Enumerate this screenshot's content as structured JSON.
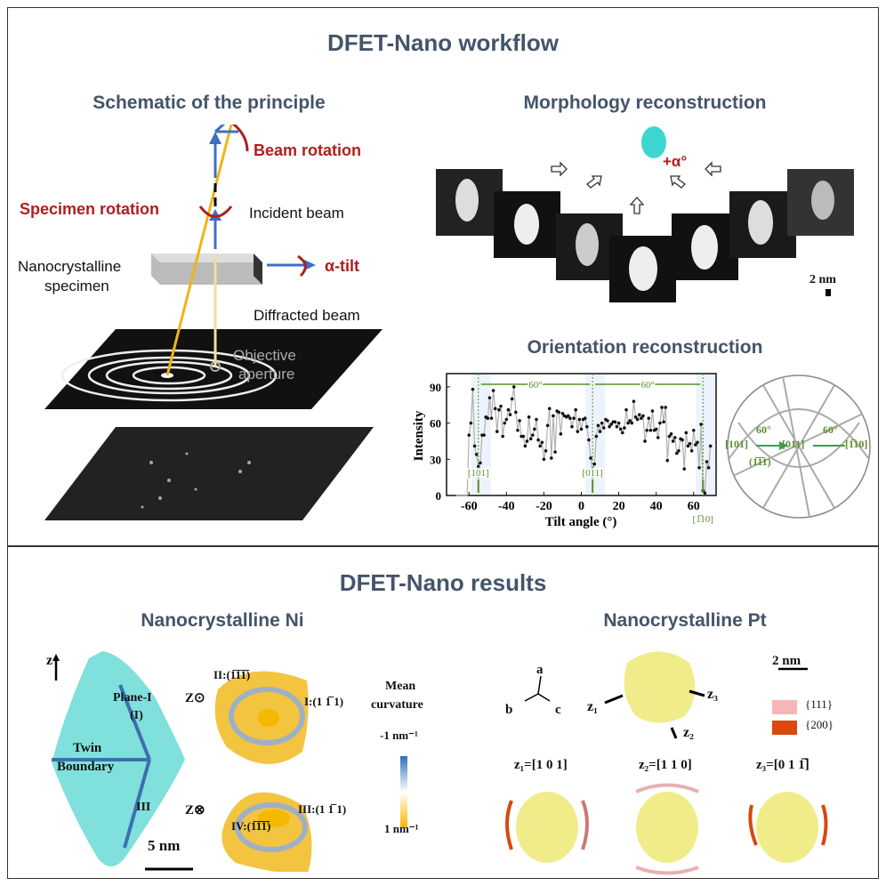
{
  "workflow": {
    "title": "DFET-Nano workflow",
    "schematic": {
      "title": "Schematic of the principle",
      "beam_rotation": "Beam rotation",
      "specimen_rotation": "Specimen rotation",
      "incident_beam": "Incident beam",
      "specimen_line1": "Nanocrystalline",
      "specimen_line2": "specimen",
      "alpha_tilt": "α-tilt",
      "diffracted_beam": "Diffracted beam",
      "aperture_line1": "Objective",
      "aperture_line2": "aperture"
    },
    "morphology": {
      "title": "Morphology reconstruction",
      "tilt_label": "+α°",
      "scale_bar": "2 nm"
    },
    "orientation": {
      "title": "Orientation reconstruction",
      "stereo_labels": {
        "left": "[101]",
        "center": "[011]",
        "right": "[1̅10]",
        "mid": "(1̅1̅1)",
        "angle_left": "60°",
        "angle_right": "60°"
      }
    }
  },
  "chart_data": {
    "type": "line",
    "xlabel": "Tilt angle (°)",
    "ylabel": "Intensity",
    "xlim": [
      -72,
      72
    ],
    "ylim": [
      0,
      101
    ],
    "xticks": [
      -60,
      -40,
      -20,
      0,
      20,
      40,
      60
    ],
    "yticks": [
      0,
      30,
      60,
      90
    ],
    "grid": false,
    "line_color": "#b0b0b0",
    "marker_color": "#111111",
    "annotations": [
      {
        "x": -55,
        "label": "[101]"
      },
      {
        "x": 6,
        "label": "[011]"
      },
      {
        "x": 65,
        "label": "[1̅10]"
      }
    ],
    "spans": [
      {
        "from": -55,
        "to": 6,
        "label": "60°"
      },
      {
        "from": 6,
        "to": 65,
        "label": "60°"
      }
    ],
    "x": [
      -67,
      -66,
      -65,
      -64,
      -63,
      -62,
      -61,
      -60,
      -59,
      -58,
      -57,
      -56,
      -55,
      -54,
      -53,
      -52,
      -51,
      -50,
      -49,
      -48,
      -47,
      -46,
      -45,
      -44,
      -43,
      -42,
      -41,
      -40,
      -39,
      -38,
      -37,
      -36,
      -35,
      -34,
      -33,
      -32,
      -31,
      -30,
      -29,
      -28,
      -27,
      -26,
      -25,
      -24,
      -23,
      -22,
      -21,
      -20,
      -19,
      -18,
      -17,
      -16,
      -15,
      -14,
      -13,
      -12,
      -11,
      -10,
      -9,
      -8,
      -7,
      -6,
      -5,
      -4,
      -3,
      -2,
      -1,
      0,
      1,
      2,
      3,
      4,
      5,
      6,
      7,
      8,
      9,
      10,
      11,
      12,
      13,
      14,
      15,
      16,
      17,
      18,
      19,
      20,
      21,
      22,
      23,
      24,
      25,
      26,
      27,
      28,
      29,
      30,
      31,
      32,
      33,
      34,
      35,
      36,
      37,
      38,
      39,
      40,
      41,
      42,
      43,
      44,
      45,
      46,
      47,
      48,
      49,
      50,
      51,
      52,
      53,
      54,
      55,
      56,
      57,
      58,
      59,
      60,
      61,
      62,
      63,
      64,
      65,
      66,
      67,
      68,
      69
    ],
    "y": [
      0,
      0,
      0,
      0,
      0,
      0,
      0,
      50,
      60,
      88,
      41,
      34,
      24,
      27,
      50,
      50,
      65,
      64,
      81,
      64,
      87,
      72,
      53,
      71,
      74,
      49,
      60,
      63,
      71,
      67,
      80,
      90,
      69,
      54,
      62,
      49,
      49,
      41,
      45,
      65,
      47,
      50,
      55,
      63,
      46,
      41,
      44,
      30,
      37,
      58,
      72,
      31,
      66,
      36,
      70,
      69,
      51,
      68,
      66,
      65,
      66,
      64,
      57,
      64,
      71,
      53,
      63,
      55,
      63,
      64,
      57,
      46,
      31,
      20,
      26,
      49,
      58,
      53,
      60,
      56,
      63,
      62,
      57,
      59,
      61,
      61,
      57,
      60,
      55,
      52,
      56,
      71,
      60,
      62,
      60,
      78,
      65,
      63,
      67,
      64,
      66,
      45,
      54,
      64,
      54,
      70,
      54,
      55,
      48,
      60,
      73,
      61,
      73,
      29,
      49,
      51,
      45,
      48,
      35,
      37,
      47,
      46,
      22,
      52,
      41,
      43,
      37,
      54,
      42,
      44,
      23,
      59,
      4,
      2,
      28,
      23,
      41
    ]
  },
  "results": {
    "title": "DFET-Nano results",
    "ni": {
      "title": "Nanocrystalline Ni",
      "z_axis": "z",
      "plane_line1": "Plane-I",
      "plane_line2": "(I)",
      "twin_line1": "Twin",
      "twin_line2": "Boundary",
      "plane_iii": "III",
      "scale_bar": "5 nm",
      "view_top": "Z⊙",
      "view_bottom": "Z⊗",
      "facet_ii": "II:(1̅1̅1̅)",
      "facet_i": "I:(1 1̅ 1)",
      "facet_iii": "III:(1 1̅ 1)",
      "facet_iv": "IV:(1̅1̅1̅)",
      "colorbar_title_line1": "Mean",
      "colorbar_title_line2": "curvature",
      "colorbar_top": "-1 nm⁻¹",
      "colorbar_bottom": "1 nm⁻¹",
      "colorbar_colors": [
        "#2e6fb7",
        "#ffffff",
        "#f5b800"
      ]
    },
    "pt": {
      "title": "Nanocrystalline Pt",
      "axis_a": "a",
      "axis_b": "b",
      "axis_c": "c",
      "z1": "z₁",
      "z2": "z₂",
      "z3": "z₃",
      "scale_bar": "2 nm",
      "legend": [
        {
          "label": "{111}",
          "color": "#f4b6b6"
        },
        {
          "label": "{200}",
          "color": "#d8480f"
        }
      ],
      "views": [
        "z₁=[1 0 1]",
        "z₂=[1 1 0]",
        "z₃=[0 1 1̅]"
      ]
    }
  }
}
